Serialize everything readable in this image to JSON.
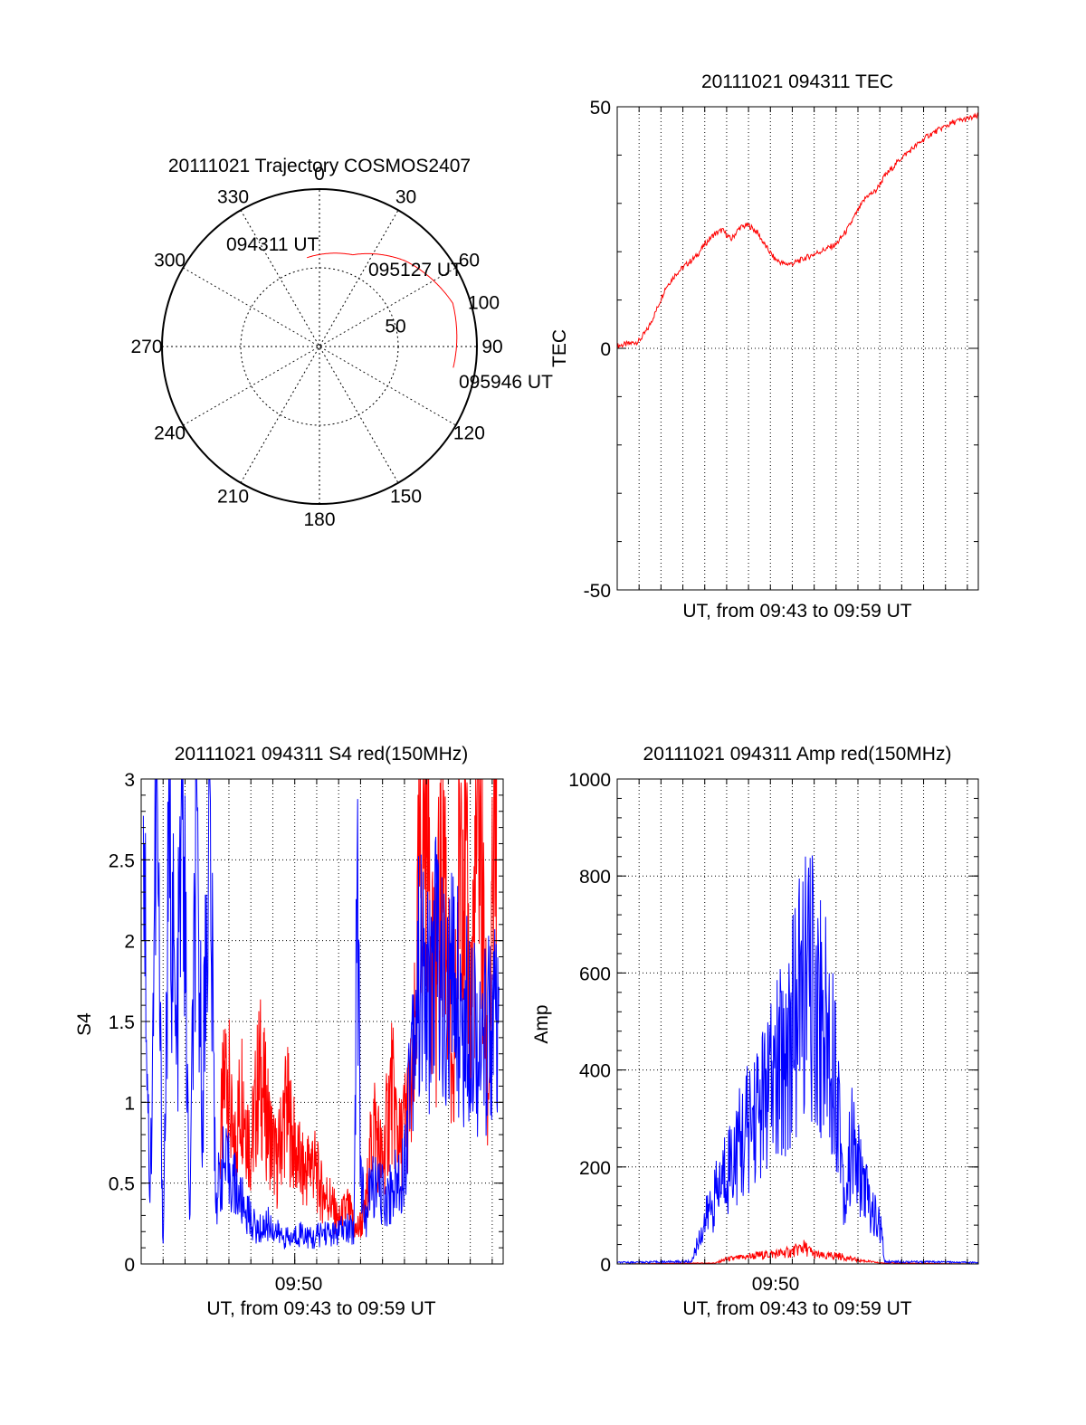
{
  "chart_data": [
    {
      "id": "trajectory",
      "type": "polar",
      "title": "20111021 Trajectory COSMOS2407",
      "azimuth_labels": [
        "0",
        "30",
        "60",
        "90",
        "120",
        "150",
        "180",
        "210",
        "240",
        "270",
        "300",
        "330"
      ],
      "elevation_labels": [
        {
          "label": "50",
          "radius_fraction": 0.5
        },
        {
          "label": "100",
          "radius_fraction": 1.08
        }
      ],
      "series": [
        {
          "color": "#ff0000",
          "points": [
            {
              "az": 352,
              "r": 0.57
            },
            {
              "az": 20,
              "r": 0.62
            },
            {
              "az": 45,
              "r": 0.77
            },
            {
              "az": 72,
              "r": 0.89
            },
            {
              "az": 99,
              "r": 0.86
            }
          ]
        }
      ],
      "annotations": [
        "094311 UT",
        "095127 UT",
        "095946 UT"
      ]
    },
    {
      "id": "tec",
      "type": "line",
      "title": "20111021 094311 TEC",
      "xlabel": "UT, from 09:43 to 09:59 UT",
      "ylabel": "TEC",
      "ylim": [
        -50,
        50
      ],
      "yticks": [
        "50",
        "0",
        "-50"
      ],
      "xlim_minutes": [
        0,
        16.5
      ],
      "series": [
        {
          "color": "#ff0000",
          "x": [
            0,
            0.6,
            1.0,
            1.4,
            1.8,
            2.2,
            2.7,
            3.2,
            3.6,
            4.0,
            4.4,
            4.8,
            5.2,
            5.6,
            6.0,
            6.4,
            6.8,
            7.2,
            7.6,
            8.0,
            8.5,
            9.0,
            9.5,
            10.0,
            10.5,
            11.0,
            11.4,
            11.8,
            12.2,
            12.6,
            13.0,
            13.4,
            13.8,
            14.2,
            14.6,
            15.0,
            15.5,
            16.0,
            16.5
          ],
          "y": [
            0.5,
            1.0,
            1.5,
            4.0,
            8.0,
            12.5,
            15.5,
            17.5,
            19.0,
            21.5,
            23.5,
            24.5,
            22.5,
            25.0,
            25.5,
            24.0,
            21.0,
            18.5,
            17.5,
            17.5,
            18.5,
            19.5,
            20.5,
            21.5,
            24.5,
            28.5,
            31.5,
            32.5,
            35.5,
            37.5,
            39.5,
            41.0,
            42.5,
            44.0,
            45.0,
            46.0,
            47.0,
            47.5,
            48.0
          ]
        }
      ]
    },
    {
      "id": "s4",
      "type": "line",
      "title": "20111021 094311 S4 red(150MHz)",
      "xlabel": "UT, from 09:43 to 09:59 UT",
      "ylabel": "S4",
      "ylim": [
        0,
        3
      ],
      "yticks": [
        "3",
        "2.5",
        "2",
        "1.5",
        "1",
        "0.5",
        "0"
      ],
      "xticks": [
        {
          "label": "09:50",
          "minute": 7
        }
      ],
      "xlim_minutes": [
        0,
        16.5
      ],
      "series": [
        {
          "color": "#ff0000",
          "x": [
            3.6,
            3.9,
            4.2,
            4.6,
            5.0,
            5.4,
            5.8,
            6.2,
            6.6,
            7.0,
            7.4,
            7.8,
            8.2,
            8.6,
            9.0,
            9.4,
            9.8,
            10.2,
            10.6,
            11.0,
            11.4,
            11.8,
            12.1,
            12.4,
            12.7,
            13.0,
            13.4,
            13.8,
            14.2,
            14.6,
            15.0,
            15.4,
            15.8,
            16.2
          ],
          "y": [
            0.75,
            1.3,
            0.65,
            1.1,
            0.7,
            1.2,
            0.85,
            0.6,
            1.0,
            0.7,
            0.55,
            0.65,
            0.45,
            0.4,
            0.25,
            0.35,
            0.2,
            0.3,
            0.9,
            0.6,
            1.1,
            0.7,
            0.95,
            1.05,
            2.4,
            3.0,
            1.6,
            2.7,
            0.8,
            3.0,
            1.5,
            2.9,
            1.0,
            3.0
          ]
        },
        {
          "color": "#0000ff",
          "x": [
            0.1,
            0.4,
            0.7,
            1.0,
            1.3,
            1.6,
            1.9,
            2.2,
            2.5,
            2.8,
            3.1,
            3.4,
            3.7,
            4.1,
            4.5,
            4.9,
            5.3,
            5.8,
            6.3,
            6.8,
            7.3,
            7.8,
            8.3,
            8.8,
            9.3,
            9.7,
            9.85,
            10.0,
            10.2,
            10.5,
            10.8,
            11.2,
            11.6,
            12.0,
            12.3,
            12.7,
            13.1,
            13.5,
            13.9,
            14.3,
            14.7,
            15.1,
            15.5,
            15.9,
            16.3
          ],
          "y": [
            2.9,
            0.3,
            3.0,
            0.1,
            2.8,
            1.2,
            3.0,
            0.2,
            2.5,
            1.0,
            2.9,
            0.4,
            0.6,
            0.55,
            0.4,
            0.3,
            0.2,
            0.25,
            0.18,
            0.15,
            0.2,
            0.15,
            0.2,
            0.18,
            0.22,
            0.2,
            2.7,
            0.6,
            0.25,
            0.5,
            0.45,
            0.4,
            0.5,
            0.6,
            1.4,
            1.8,
            1.6,
            2.0,
            1.5,
            1.8,
            1.4,
            1.7,
            1.2,
            1.6,
            1.3
          ]
        }
      ]
    },
    {
      "id": "amp",
      "type": "line",
      "title": "20111021 094311 Amp red(150MHz)",
      "xlabel": "UT, from 09:43 to 09:59 UT",
      "ylabel": "Amp",
      "ylim": [
        0,
        1000
      ],
      "yticks": [
        "1000",
        "800",
        "600",
        "400",
        "200",
        "0"
      ],
      "xticks": [
        {
          "label": "09:50",
          "minute": 7
        }
      ],
      "xlim_minutes": [
        0,
        16.5
      ],
      "series": [
        {
          "color": "#ff0000",
          "x": [
            0,
            4.5,
            5.0,
            5.5,
            6.0,
            6.5,
            7.0,
            7.5,
            8.0,
            8.5,
            9.0,
            9.5,
            10.0,
            10.5,
            11.0,
            11.5,
            12.0,
            16.5
          ],
          "y": [
            0,
            2,
            10,
            12,
            15,
            18,
            20,
            22,
            25,
            35,
            20,
            15,
            18,
            12,
            8,
            5,
            2,
            0
          ]
        },
        {
          "color": "#0000ff",
          "x": [
            0,
            3.4,
            3.8,
            4.2,
            4.6,
            5.0,
            5.4,
            5.8,
            6.2,
            6.6,
            7.0,
            7.4,
            7.8,
            8.2,
            8.6,
            9.0,
            9.4,
            9.8,
            10.1,
            10.4,
            10.7,
            11.0,
            11.3,
            11.6,
            11.9,
            12.1,
            12.2,
            16.5
          ],
          "y": [
            3,
            5,
            60,
            110,
            150,
            200,
            230,
            260,
            300,
            330,
            360,
            400,
            450,
            520,
            580,
            560,
            500,
            450,
            350,
            120,
            250,
            200,
            160,
            110,
            90,
            60,
            5,
            3
          ]
        }
      ]
    }
  ]
}
